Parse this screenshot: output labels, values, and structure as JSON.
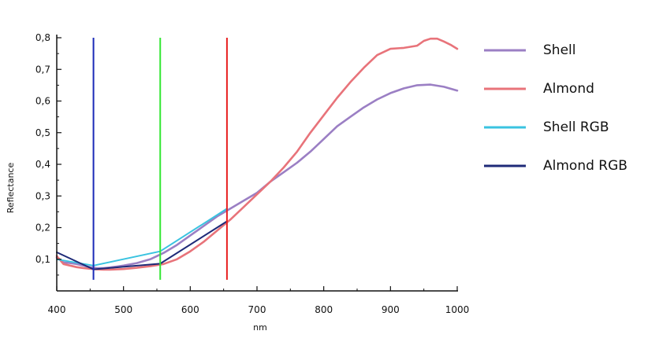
{
  "chart_data": {
    "type": "line",
    "title": "",
    "xlabel": "nm",
    "ylabel": "Reflectance",
    "xlim": [
      400,
      1000
    ],
    "ylim": [
      0.0,
      0.8
    ],
    "x_ticks": [
      "400",
      "500",
      "600",
      "700",
      "800",
      "900",
      "1000"
    ],
    "x_tick_values": [
      400,
      500,
      600,
      700,
      800,
      900,
      1000
    ],
    "y_ticks": [
      "0,1",
      "0,2",
      "0,3",
      "0,4",
      "0,5",
      "0,6",
      "0,7",
      "0,8"
    ],
    "y_tick_values": [
      0.1,
      0.2,
      0.3,
      0.4,
      0.5,
      0.6,
      0.7,
      0.8
    ],
    "grid": false,
    "legend_position": "right",
    "series": [
      {
        "name": "Shell",
        "color": "#9b7fc4",
        "x": [
          400,
          410,
          420,
          430,
          440,
          450,
          460,
          470,
          480,
          490,
          500,
          520,
          540,
          560,
          580,
          600,
          620,
          640,
          660,
          680,
          700,
          720,
          740,
          760,
          780,
          800,
          820,
          840,
          860,
          880,
          900,
          920,
          940,
          960,
          980,
          1000
        ],
        "y": [
          0.105,
          0.09,
          0.088,
          0.085,
          0.08,
          0.075,
          0.072,
          0.072,
          0.074,
          0.077,
          0.08,
          0.088,
          0.1,
          0.12,
          0.145,
          0.175,
          0.205,
          0.235,
          0.26,
          0.285,
          0.31,
          0.345,
          0.375,
          0.405,
          0.44,
          0.48,
          0.52,
          0.55,
          0.58,
          0.605,
          0.625,
          0.64,
          0.65,
          0.652,
          0.645,
          0.633
        ]
      },
      {
        "name": "Almond",
        "color": "#e8737a",
        "x": [
          400,
          410,
          420,
          430,
          440,
          450,
          460,
          470,
          480,
          490,
          500,
          520,
          540,
          560,
          580,
          600,
          620,
          640,
          660,
          680,
          700,
          720,
          740,
          760,
          780,
          800,
          820,
          840,
          860,
          880,
          900,
          920,
          940,
          950,
          960,
          970,
          980,
          990,
          1000
        ],
        "y": [
          0.11,
          0.085,
          0.08,
          0.075,
          0.072,
          0.07,
          0.068,
          0.067,
          0.067,
          0.068,
          0.069,
          0.073,
          0.078,
          0.085,
          0.1,
          0.125,
          0.155,
          0.19,
          0.225,
          0.265,
          0.305,
          0.345,
          0.39,
          0.44,
          0.5,
          0.555,
          0.61,
          0.66,
          0.705,
          0.745,
          0.765,
          0.768,
          0.775,
          0.79,
          0.797,
          0.797,
          0.788,
          0.778,
          0.765
        ]
      },
      {
        "name": "Shell RGB",
        "color": "#3ac3e0",
        "x": [
          400,
          455,
          555,
          655
        ],
        "y": [
          0.1,
          0.08,
          0.125,
          0.26
        ]
      },
      {
        "name": "Almond RGB",
        "color": "#1e2a78",
        "x": [
          400,
          455,
          555,
          655
        ],
        "y": [
          0.122,
          0.068,
          0.086,
          0.22
        ]
      }
    ],
    "vertical_lines": [
      {
        "x": 455,
        "y_range": [
          0.035,
          0.8
        ],
        "color": "#1a2ab8"
      },
      {
        "x": 555,
        "y_range": [
          0.035,
          0.8
        ],
        "color": "#33e633"
      },
      {
        "x": 655,
        "y_range": [
          0.035,
          0.8
        ],
        "color": "#e82020"
      }
    ]
  }
}
